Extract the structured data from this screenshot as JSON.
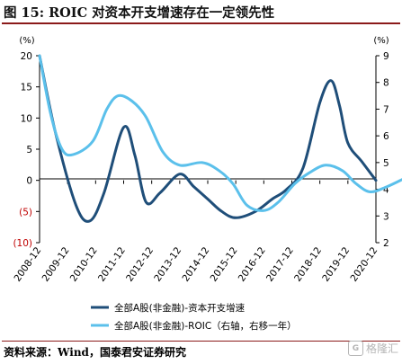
{
  "header": {
    "title": "图 15: ROIC 对资本开支增速存在一定领先性"
  },
  "footer": {
    "source": "资料来源：Wind，国泰君安证券研究",
    "watermark_text": "格隆汇",
    "watermark_icon": "G"
  },
  "colors": {
    "title_rule": "#8b1a1a",
    "series_capex": "#1f4e79",
    "series_roic": "#5bc0eb",
    "negative_tick": "#c00000"
  },
  "chart_data": {
    "type": "line",
    "title": "",
    "left_axis": {
      "unit": "(%)",
      "ylim": [
        -10,
        20
      ],
      "ticks": [
        "20",
        "15",
        "10",
        "5",
        "0",
        "(5)",
        "(10)"
      ],
      "tick_values": [
        20,
        15,
        10,
        5,
        0,
        -5,
        -10
      ]
    },
    "right_axis": {
      "unit": "(%)",
      "ylim": [
        2,
        9
      ],
      "ticks": [
        "9",
        "8",
        "7",
        "6",
        "5",
        "4",
        "3",
        "2"
      ],
      "tick_values": [
        9,
        8,
        7,
        6,
        5,
        4,
        3,
        2
      ]
    },
    "categories": [
      "2008-12",
      "2009-12",
      "2010-12",
      "2011-12",
      "2012-12",
      "2013-12",
      "2014-12",
      "2015-12",
      "2016-12",
      "2017-12",
      "2018-12",
      "2019-12",
      "2020-12"
    ],
    "grid": false,
    "legend_position": "bottom",
    "series": [
      {
        "name": "全部A股(非金融)-资本开支增速",
        "axis": "left",
        "points": [
          [
            0,
            20
          ],
          [
            0.55,
            8
          ],
          [
            1.3,
            -4
          ],
          [
            1.8,
            -6.5
          ],
          [
            2.3,
            -2
          ],
          [
            3,
            8.5
          ],
          [
            3.4,
            4
          ],
          [
            3.8,
            -3.5
          ],
          [
            4.3,
            -2
          ],
          [
            5,
            1
          ],
          [
            5.5,
            -1
          ],
          [
            6,
            -3
          ],
          [
            6.5,
            -5
          ],
          [
            7,
            -6
          ],
          [
            7.7,
            -5
          ],
          [
            8.3,
            -3
          ],
          [
            8.8,
            -1.5
          ],
          [
            9.4,
            2
          ],
          [
            10,
            12.5
          ],
          [
            10.4,
            16
          ],
          [
            10.7,
            12
          ],
          [
            11,
            6
          ],
          [
            11.5,
            3
          ],
          [
            12,
            0
          ]
        ]
      },
      {
        "name": "全部A股(非金融)-ROIC（右轴，右移一年）",
        "axis": "right",
        "points": [
          [
            0,
            9
          ],
          [
            0.4,
            6.8
          ],
          [
            0.8,
            5.5
          ],
          [
            1.2,
            5.3
          ],
          [
            1.9,
            5.8
          ],
          [
            2.4,
            7.0
          ],
          [
            2.8,
            7.5
          ],
          [
            3.3,
            7.3
          ],
          [
            3.8,
            6.7
          ],
          [
            4.4,
            5.4
          ],
          [
            5,
            4.9
          ],
          [
            5.8,
            5.0
          ],
          [
            6.4,
            4.7
          ],
          [
            6.9,
            4.2
          ],
          [
            7.4,
            3.4
          ],
          [
            8,
            3.2
          ],
          [
            8.5,
            3.5
          ],
          [
            9.1,
            4.2
          ],
          [
            9.6,
            4.6
          ],
          [
            10.2,
            4.9
          ],
          [
            10.8,
            4.7
          ],
          [
            11.3,
            4.2
          ],
          [
            11.8,
            3.9
          ],
          [
            12.4,
            4.1
          ],
          [
            13,
            4.4
          ]
        ]
      }
    ]
  }
}
